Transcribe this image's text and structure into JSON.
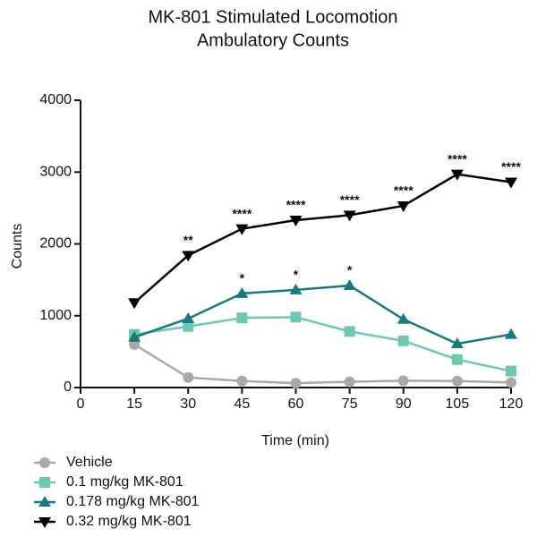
{
  "chart_data": {
    "type": "line",
    "title": [
      "MK-801 Stimulated Locomotion",
      "Ambulatory Counts"
    ],
    "x_label": "Time (min)",
    "y_label": "Counts",
    "x": [
      15,
      30,
      45,
      60,
      75,
      90,
      105,
      120
    ],
    "xlim": [
      0,
      120
    ],
    "xticks": [
      0,
      15,
      30,
      45,
      60,
      75,
      90,
      105,
      120
    ],
    "ylim": [
      0,
      4000
    ],
    "yticks": [
      0,
      1000,
      2000,
      3000,
      4000
    ],
    "grid": false,
    "legend": "bottom-left",
    "series": [
      {
        "name": "Vehicle",
        "color": "#a9a9a9",
        "marker": "circle",
        "values": [
          600,
          140,
          90,
          60,
          80,
          95,
          90,
          70
        ]
      },
      {
        "name": "0.1 mg/kg MK-801",
        "color": "#6cc7b3",
        "marker": "square",
        "values": [
          740,
          850,
          970,
          980,
          780,
          650,
          390,
          230
        ]
      },
      {
        "name": "0.178 mg/kg MK-801",
        "color": "#167a80",
        "marker": "triangle-up",
        "values": [
          700,
          960,
          1310,
          1360,
          1420,
          950,
          610,
          740
        ],
        "significance": [
          null,
          null,
          "*",
          "*",
          "*",
          null,
          null,
          null
        ]
      },
      {
        "name": "0.32 mg/kg MK-801",
        "color": "#000000",
        "marker": "triangle-down",
        "values": [
          1180,
          1840,
          2210,
          2330,
          2400,
          2530,
          2970,
          2860
        ],
        "significance": [
          null,
          "**",
          "****",
          "****",
          "****",
          "****",
          "****",
          "****"
        ]
      }
    ]
  }
}
